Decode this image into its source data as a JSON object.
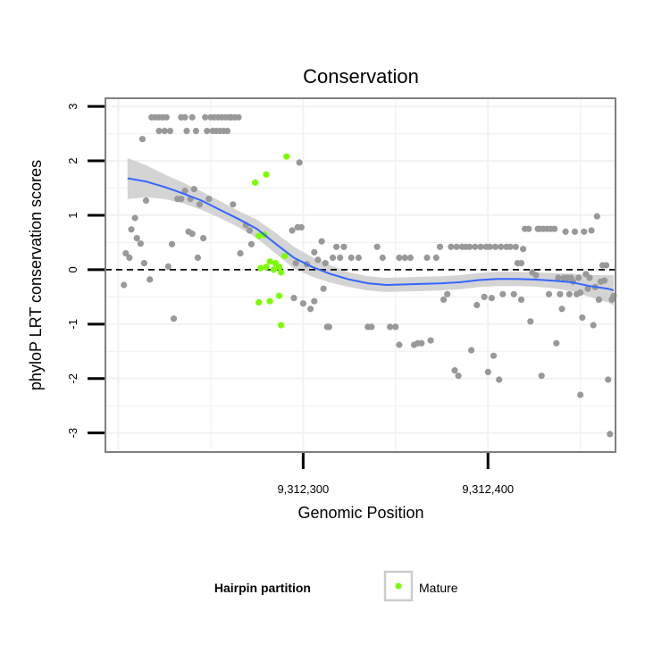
{
  "chart_data": {
    "type": "scatter",
    "title": "Conservation",
    "xlabel": "Genomic Position",
    "ylabel": "phyloP LRT conservation scores",
    "xlim": [
      9312193,
      9312469
    ],
    "ylim": [
      -3.35,
      3.15
    ],
    "x_ticks": [
      {
        "value": 9312300,
        "label": "9,312,300"
      },
      {
        "value": 9312400,
        "label": "9,312,400"
      }
    ],
    "y_ticks": [
      {
        "value": 3,
        "label": "3"
      },
      {
        "value": 2,
        "label": "2"
      },
      {
        "value": 1,
        "label": "1"
      },
      {
        "value": 0,
        "label": "0"
      },
      {
        "value": -1,
        "label": "-1"
      },
      {
        "value": -2,
        "label": "-2"
      },
      {
        "value": -3,
        "label": "-3"
      }
    ],
    "reference_line": {
      "y": 0,
      "style": "dashed"
    },
    "grid": true,
    "legend": {
      "title": "Hairpin partition",
      "entries": [
        {
          "label": "Mature",
          "color": "#7cfc00"
        }
      ],
      "position": "bottom"
    },
    "colors": {
      "other": "#999999",
      "mature": "#7cfc00",
      "smooth": "#3366ff",
      "ribbon": "#cccccc"
    },
    "series": [
      {
        "name": "Mature",
        "points": [
          [
            9312274,
            1.6
          ],
          [
            9312280,
            1.75
          ],
          [
            9312276,
            0.62
          ],
          [
            9312279,
            0.64
          ],
          [
            9312277,
            0.03
          ],
          [
            9312280,
            0.05
          ],
          [
            9312282,
            0.15
          ],
          [
            9312285,
            0.12
          ],
          [
            9312284,
            0.0
          ],
          [
            9312287,
            0.05
          ],
          [
            9312288,
            -0.05
          ],
          [
            9312290,
            0.25
          ],
          [
            9312291,
            2.08
          ],
          [
            9312276,
            -0.6
          ],
          [
            9312282,
            -0.58
          ],
          [
            9312287,
            -0.48
          ],
          [
            9312288,
            -1.02
          ]
        ]
      },
      {
        "name": "other",
        "points": [
          [
            9312203,
            -0.28
          ],
          [
            9312204,
            0.3
          ],
          [
            9312206,
            0.22
          ],
          [
            9312207,
            0.74
          ],
          [
            9312209,
            0.95
          ],
          [
            9312210,
            0.58
          ],
          [
            9312212,
            0.48
          ],
          [
            9312213,
            2.4
          ],
          [
            9312214,
            0.12
          ],
          [
            9312215,
            1.27
          ],
          [
            9312217,
            -0.18
          ],
          [
            9312218,
            2.8
          ],
          [
            9312220,
            2.8
          ],
          [
            9312222,
            2.8
          ],
          [
            9312224,
            2.8
          ],
          [
            9312226,
            2.8
          ],
          [
            9312222,
            2.55
          ],
          [
            9312225,
            2.55
          ],
          [
            9312227,
            0.06
          ],
          [
            9312228,
            2.55
          ],
          [
            9312229,
            0.47
          ],
          [
            9312230,
            -0.9
          ],
          [
            9312232,
            1.3
          ],
          [
            9312234,
            1.3
          ],
          [
            9312234,
            2.8
          ],
          [
            9312236,
            2.8
          ],
          [
            9312236,
            1.45
          ],
          [
            9312237,
            2.55
          ],
          [
            9312238,
            0.7
          ],
          [
            9312239,
            1.3
          ],
          [
            9312240,
            0.66
          ],
          [
            9312240,
            2.8
          ],
          [
            9312241,
            1.48
          ],
          [
            9312242,
            2.55
          ],
          [
            9312243,
            0.22
          ],
          [
            9312244,
            1.2
          ],
          [
            9312246,
            0.58
          ],
          [
            9312247,
            2.8
          ],
          [
            9312248,
            2.55
          ],
          [
            9312249,
            1.3
          ],
          [
            9312250,
            2.8
          ],
          [
            9312251,
            2.55
          ],
          [
            9312252,
            2.8
          ],
          [
            9312253,
            2.55
          ],
          [
            9312254,
            2.8
          ],
          [
            9312255,
            2.55
          ],
          [
            9312256,
            2.8
          ],
          [
            9312257,
            2.55
          ],
          [
            9312258,
            2.8
          ],
          [
            9312259,
            2.55
          ],
          [
            9312260,
            2.8
          ],
          [
            9312261,
            2.8
          ],
          [
            9312263,
            2.8
          ],
          [
            9312265,
            2.8
          ],
          [
            9312262,
            1.2
          ],
          [
            9312266,
            0.3
          ],
          [
            9312269,
            0.82
          ],
          [
            9312271,
            0.72
          ],
          [
            9312272,
            0.47
          ],
          [
            9312294,
            0.72
          ],
          [
            9312295,
            -0.52
          ],
          [
            9312296,
            0.12
          ],
          [
            9312297,
            0.78
          ],
          [
            9312298,
            1.97
          ],
          [
            9312299,
            0.78
          ],
          [
            9312300,
            -0.62
          ],
          [
            9312302,
            0.1
          ],
          [
            9312304,
            -0.72
          ],
          [
            9312306,
            0.32
          ],
          [
            9312306,
            -0.58
          ],
          [
            9312308,
            0.18
          ],
          [
            9312310,
            0.52
          ],
          [
            9312311,
            -0.35
          ],
          [
            9312312,
            0.12
          ],
          [
            9312313,
            -1.05
          ],
          [
            9312314,
            -1.05
          ],
          [
            9312316,
            0.22
          ],
          [
            9312318,
            0.42
          ],
          [
            9312320,
            0.22
          ],
          [
            9312322,
            0.42
          ],
          [
            9312326,
            0.22
          ],
          [
            9312330,
            0.22
          ],
          [
            9312335,
            -1.05
          ],
          [
            9312337,
            -1.05
          ],
          [
            9312340,
            0.42
          ],
          [
            9312343,
            0.22
          ],
          [
            9312347,
            -1.05
          ],
          [
            9312350,
            -1.05
          ],
          [
            9312352,
            0.22
          ],
          [
            9312355,
            0.22
          ],
          [
            9312352,
            -1.38
          ],
          [
            9312358,
            0.22
          ],
          [
            9312360,
            -1.38
          ],
          [
            9312362,
            -1.35
          ],
          [
            9312364,
            -1.35
          ],
          [
            9312367,
            0.22
          ],
          [
            9312369,
            -1.3
          ],
          [
            9312372,
            0.22
          ],
          [
            9312374,
            0.42
          ],
          [
            9312376,
            -0.55
          ],
          [
            9312378,
            -0.45
          ],
          [
            9312380,
            0.42
          ],
          [
            9312383,
            0.42
          ],
          [
            9312382,
            -1.85
          ],
          [
            9312384,
            -1.95
          ],
          [
            9312386,
            0.42
          ],
          [
            9312388,
            0.42
          ],
          [
            9312390,
            0.42
          ],
          [
            9312391,
            -1.48
          ],
          [
            9312393,
            0.42
          ],
          [
            9312394,
            -0.65
          ],
          [
            9312396,
            0.42
          ],
          [
            9312398,
            -0.5
          ],
          [
            9312399,
            0.42
          ],
          [
            9312400,
            -1.88
          ],
          [
            9312401,
            0.42
          ],
          [
            9312402,
            -0.52
          ],
          [
            9312403,
            -1.58
          ],
          [
            9312404,
            0.42
          ],
          [
            9312406,
            -2.02
          ],
          [
            9312407,
            0.42
          ],
          [
            9312408,
            -0.45
          ],
          [
            9312410,
            0.42
          ],
          [
            9312412,
            0.42
          ],
          [
            9312414,
            -0.45
          ],
          [
            9312415,
            0.42
          ],
          [
            9312416,
            0.12
          ],
          [
            9312418,
            0.12
          ],
          [
            9312418,
            -0.55
          ],
          [
            9312419,
            0.38
          ],
          [
            9312420,
            0.75
          ],
          [
            9312422,
            0.75
          ],
          [
            9312423,
            -0.95
          ],
          [
            9312424,
            -0.05
          ],
          [
            9312426,
            -0.1
          ],
          [
            9312427,
            0.75
          ],
          [
            9312428,
            0.75
          ],
          [
            9312429,
            -1.95
          ],
          [
            9312430,
            0.75
          ],
          [
            9312432,
            0.75
          ],
          [
            9312433,
            -0.45
          ],
          [
            9312434,
            0.75
          ],
          [
            9312436,
            0.75
          ],
          [
            9312437,
            -1.35
          ],
          [
            9312438,
            -0.15
          ],
          [
            9312439,
            -0.45
          ],
          [
            9312440,
            -0.72
          ],
          [
            9312441,
            -0.15
          ],
          [
            9312442,
            0.7
          ],
          [
            9312443,
            -0.15
          ],
          [
            9312444,
            -0.45
          ],
          [
            9312445,
            -0.15
          ],
          [
            9312446,
            -0.22
          ],
          [
            9312447,
            0.7
          ],
          [
            9312448,
            -0.45
          ],
          [
            9312449,
            -0.15
          ],
          [
            9312450,
            -0.42
          ],
          [
            9312450,
            -2.3
          ],
          [
            9312451,
            -0.88
          ],
          [
            9312452,
            0.7
          ],
          [
            9312453,
            -0.08
          ],
          [
            9312454,
            -0.35
          ],
          [
            9312455,
            -0.15
          ],
          [
            9312456,
            0.72
          ],
          [
            9312457,
            -1.02
          ],
          [
            9312458,
            -0.32
          ],
          [
            9312459,
            0.98
          ],
          [
            9312460,
            -0.55
          ],
          [
            9312461,
            -0.22
          ],
          [
            9312462,
            0.08
          ],
          [
            9312463,
            -0.2
          ],
          [
            9312464,
            0.08
          ],
          [
            9312465,
            -2.02
          ],
          [
            9312466,
            -3.02
          ],
          [
            9312467,
            -0.55
          ],
          [
            9312468,
            -0.48
          ]
        ]
      }
    ],
    "smooth": [
      [
        9312205,
        1.68
      ],
      [
        9312215,
        1.62
      ],
      [
        9312225,
        1.52
      ],
      [
        9312235,
        1.4
      ],
      [
        9312245,
        1.27
      ],
      [
        9312255,
        1.1
      ],
      [
        9312265,
        0.93
      ],
      [
        9312275,
        0.75
      ],
      [
        9312285,
        0.48
      ],
      [
        9312295,
        0.22
      ],
      [
        9312305,
        0.05
      ],
      [
        9312315,
        -0.08
      ],
      [
        9312325,
        -0.18
      ],
      [
        9312335,
        -0.25
      ],
      [
        9312345,
        -0.28
      ],
      [
        9312355,
        -0.27
      ],
      [
        9312365,
        -0.26
      ],
      [
        9312375,
        -0.25
      ],
      [
        9312385,
        -0.23
      ],
      [
        9312395,
        -0.19
      ],
      [
        9312405,
        -0.17
      ],
      [
        9312415,
        -0.17
      ],
      [
        9312425,
        -0.18
      ],
      [
        9312435,
        -0.2
      ],
      [
        9312445,
        -0.23
      ],
      [
        9312455,
        -0.3
      ],
      [
        9312465,
        -0.35
      ],
      [
        9312468,
        -0.38
      ]
    ],
    "smooth_ci": [
      [
        9312205,
        2.05,
        1.3
      ],
      [
        9312215,
        1.92,
        1.33
      ],
      [
        9312225,
        1.75,
        1.3
      ],
      [
        9312235,
        1.6,
        1.22
      ],
      [
        9312245,
        1.44,
        1.1
      ],
      [
        9312255,
        1.26,
        0.95
      ],
      [
        9312265,
        1.08,
        0.78
      ],
      [
        9312275,
        0.92,
        0.58
      ],
      [
        9312285,
        0.68,
        0.3
      ],
      [
        9312295,
        0.42,
        0.02
      ],
      [
        9312305,
        0.23,
        -0.13
      ],
      [
        9312315,
        0.08,
        -0.24
      ],
      [
        9312325,
        -0.05,
        -0.32
      ],
      [
        9312335,
        -0.12,
        -0.38
      ],
      [
        9312345,
        -0.15,
        -0.41
      ],
      [
        9312355,
        -0.14,
        -0.4
      ],
      [
        9312365,
        -0.13,
        -0.39
      ],
      [
        9312375,
        -0.12,
        -0.38
      ],
      [
        9312385,
        -0.1,
        -0.36
      ],
      [
        9312395,
        -0.06,
        -0.32
      ],
      [
        9312405,
        -0.04,
        -0.3
      ],
      [
        9312415,
        -0.04,
        -0.3
      ],
      [
        9312425,
        -0.05,
        -0.31
      ],
      [
        9312435,
        -0.06,
        -0.34
      ],
      [
        9312445,
        -0.07,
        -0.39
      ],
      [
        9312455,
        -0.1,
        -0.5
      ],
      [
        9312465,
        -0.1,
        -0.6
      ],
      [
        9312468,
        -0.1,
        -0.66
      ]
    ]
  }
}
